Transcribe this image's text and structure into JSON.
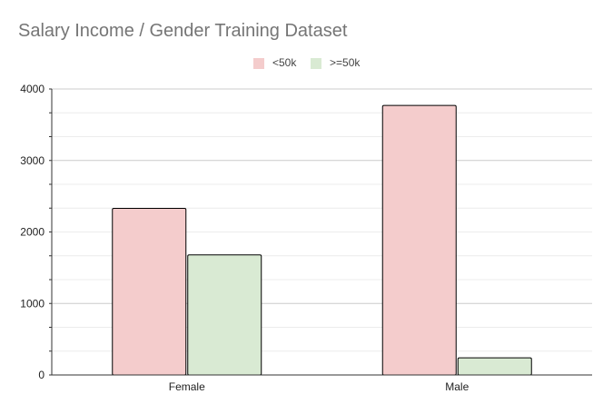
{
  "chart_data": {
    "type": "bar",
    "title": "Salary Income / Gender Training Dataset",
    "categories": [
      "Female",
      "Male"
    ],
    "series": [
      {
        "name": "<50k",
        "values": [
          2330,
          3770
        ],
        "color": "#f4cccc"
      },
      {
        "name": ">=50k",
        "values": [
          1680,
          240
        ],
        "color": "#d9ead3"
      }
    ],
    "y_ticks": [
      "0",
      "1000",
      "2000",
      "3000",
      "4000"
    ],
    "ylim": [
      0,
      4000
    ],
    "xlabel": "",
    "ylabel": "",
    "grid": true,
    "legend_position": "top"
  }
}
